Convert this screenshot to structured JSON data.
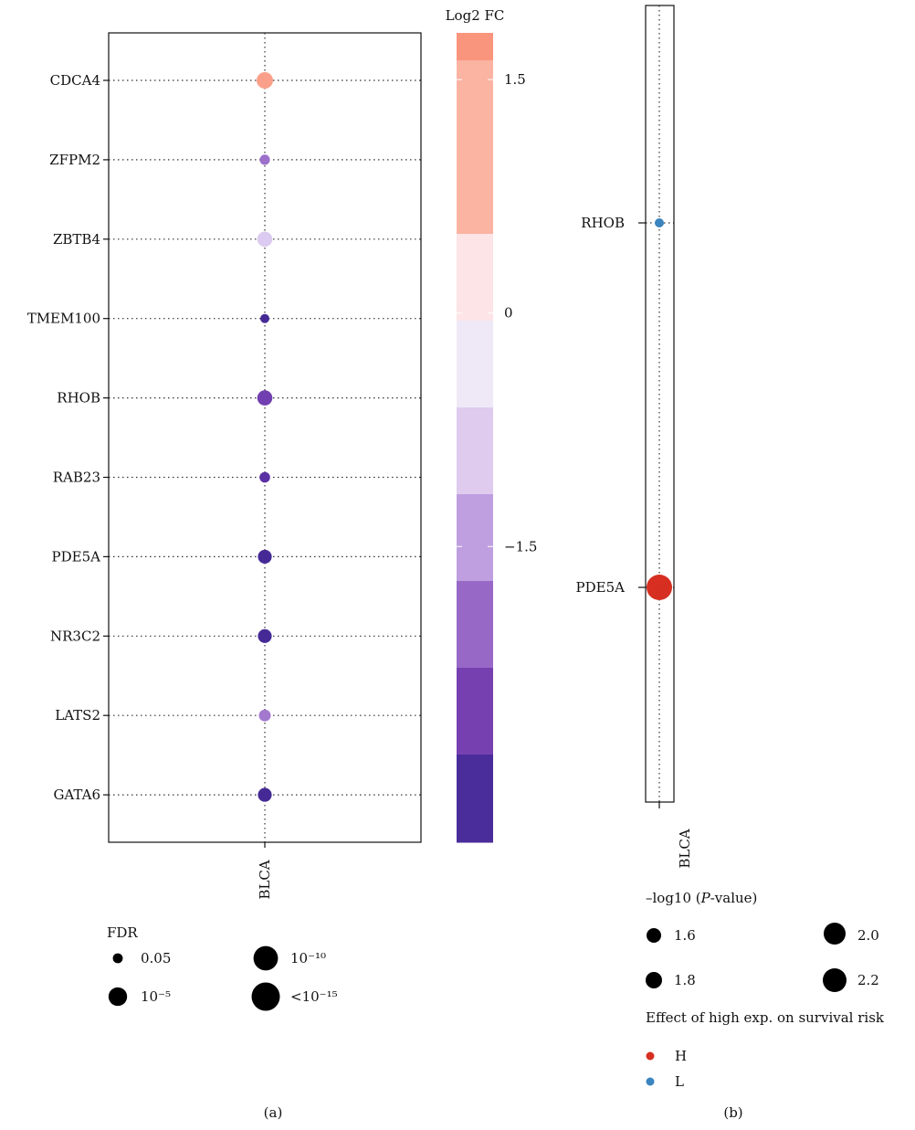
{
  "chart_data": [
    {
      "panel": "(a)",
      "type": "scatter",
      "x_categories": [
        "BLCA"
      ],
      "y_categories": [
        "CDCA4",
        "ZFPM2",
        "ZBTB4",
        "TMEM100",
        "RHOB",
        "RAB23",
        "PDE5A",
        "NR3C2",
        "LATS2",
        "GATA6"
      ],
      "points": [
        {
          "gene": "CDCA4",
          "cancer": "BLCA",
          "log2fc": 1.2,
          "fdr_size": 0.78
        },
        {
          "gene": "ZFPM2",
          "cancer": "BLCA",
          "log2fc": -2.1,
          "fdr_size": 0.4
        },
        {
          "gene": "ZBTB4",
          "cancer": "BLCA",
          "log2fc": -1.0,
          "fdr_size": 0.7
        },
        {
          "gene": "TMEM100",
          "cancer": "BLCA",
          "log2fc": -3.3,
          "fdr_size": 0.33
        },
        {
          "gene": "RHOB",
          "cancer": "BLCA",
          "log2fc": -2.7,
          "fdr_size": 0.7
        },
        {
          "gene": "RAB23",
          "cancer": "BLCA",
          "log2fc": -3.0,
          "fdr_size": 0.42
        },
        {
          "gene": "PDE5A",
          "cancer": "BLCA",
          "log2fc": -3.3,
          "fdr_size": 0.62
        },
        {
          "gene": "NR3C2",
          "cancer": "BLCA",
          "log2fc": -3.3,
          "fdr_size": 0.62
        },
        {
          "gene": "LATS2",
          "cancer": "BLCA",
          "log2fc": -2.0,
          "fdr_size": 0.5
        },
        {
          "gene": "GATA6",
          "cancer": "BLCA",
          "log2fc": -3.3,
          "fdr_size": 0.62
        }
      ],
      "colorbar": {
        "title": "Log2 FC",
        "tick_labels": [
          "1.5",
          "0",
          "−1.5"
        ],
        "bands": [
          "#f9957c",
          "#fbb3a2",
          "#fde4e6",
          "#efe9f7",
          "#decbee",
          "#bf9fe0",
          "#9868c7",
          "#7740b0",
          "#4a2c9a"
        ]
      },
      "size_legend": {
        "title": "FDR",
        "entries": [
          {
            "label": "0.05",
            "size": 0.28
          },
          {
            "label": "10⁻⁵",
            "size": 0.62
          },
          {
            "label": "10⁻¹⁰",
            "size": 0.85
          },
          {
            "label": "<10⁻¹⁵",
            "size": 1.0
          }
        ]
      }
    },
    {
      "panel": "(b)",
      "type": "scatter",
      "x_categories": [
        "BLCA"
      ],
      "y_categories": [
        "RHOB",
        "PDE5A"
      ],
      "points": [
        {
          "gene": "RHOB",
          "cancer": "BLCA",
          "neg_log10_p": 1.6,
          "effect": "L"
        },
        {
          "gene": "PDE5A",
          "cancer": "BLCA",
          "neg_log10_p": 2.2,
          "effect": "H"
        }
      ],
      "size_legend": {
        "title_prefix": "–log10 (",
        "title_italic": "P",
        "title_suffix": "-value)",
        "entries": [
          {
            "label": "1.6",
            "value": 1.6
          },
          {
            "label": "1.8",
            "value": 1.8
          },
          {
            "label": "2.0",
            "value": 2.0
          },
          {
            "label": "2.2",
            "value": 2.2
          }
        ]
      },
      "color_legend": {
        "title": "Effect of high exp. on survival risk",
        "entries": [
          {
            "label": "H",
            "color": "#d62f21"
          },
          {
            "label": "L",
            "color": "#3a84bf"
          }
        ]
      }
    }
  ]
}
